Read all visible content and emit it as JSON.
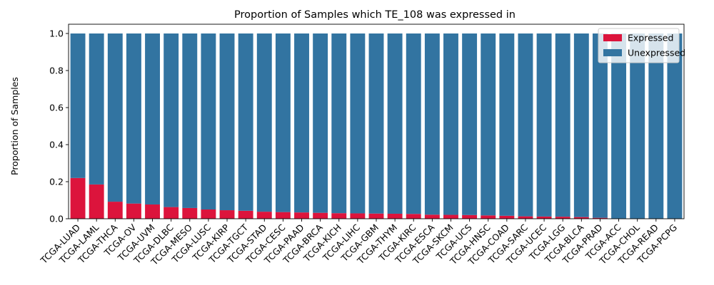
{
  "chart_data": {
    "type": "bar",
    "stacked": true,
    "title": "Proportion of Samples which TE_108 was expressed in",
    "xlabel": "",
    "ylabel": "Proportion of Samples",
    "ylim": [
      0,
      1.05
    ],
    "yticks": [
      "0.0",
      "0.2",
      "0.4",
      "0.6",
      "0.8",
      "1.0"
    ],
    "legend_position": "top-right",
    "grid": false,
    "categories": [
      "TCGA-LUAD",
      "TCGA-LAML",
      "TCGA-THCA",
      "TCGA-OV",
      "TCGA-UVM",
      "TCGA-DLBC",
      "TCGA-MESO",
      "TCGA-LUSC",
      "TCGA-KIRP",
      "TCGA-TGCT",
      "TCGA-STAD",
      "TCGA-CESC",
      "TCGA-PAAD",
      "TCGA-BRCA",
      "TCGA-KICH",
      "TCGA-LIHC",
      "TCGA-GBM",
      "TCGA-THYM",
      "TCGA-KIRC",
      "TCGA-ESCA",
      "TCGA-SKCM",
      "TCGA-UCS",
      "TCGA-HNSC",
      "TCGA-COAD",
      "TCGA-SARC",
      "TCGA-UCEC",
      "TCGA-LGG",
      "TCGA-BLCA",
      "TCGA-PRAD",
      "TCGA-ACC",
      "TCGA-CHOL",
      "TCGA-READ",
      "TCGA-PCPG"
    ],
    "series": [
      {
        "name": "Expressed",
        "color": "#dc143c",
        "values": [
          0.22,
          0.185,
          0.092,
          0.082,
          0.077,
          0.063,
          0.058,
          0.05,
          0.046,
          0.043,
          0.038,
          0.036,
          0.034,
          0.032,
          0.03,
          0.029,
          0.028,
          0.027,
          0.026,
          0.022,
          0.021,
          0.02,
          0.018,
          0.016,
          0.013,
          0.012,
          0.011,
          0.009,
          0.005,
          0.0,
          0.0,
          0.0,
          0.0
        ]
      },
      {
        "name": "Unexpressed",
        "color": "#3274a1",
        "values": [
          0.78,
          0.815,
          0.908,
          0.918,
          0.923,
          0.937,
          0.942,
          0.95,
          0.954,
          0.957,
          0.962,
          0.964,
          0.966,
          0.968,
          0.97,
          0.971,
          0.972,
          0.973,
          0.974,
          0.978,
          0.979,
          0.98,
          0.982,
          0.984,
          0.987,
          0.988,
          0.989,
          0.991,
          0.995,
          1.0,
          1.0,
          1.0,
          1.0
        ]
      }
    ]
  }
}
